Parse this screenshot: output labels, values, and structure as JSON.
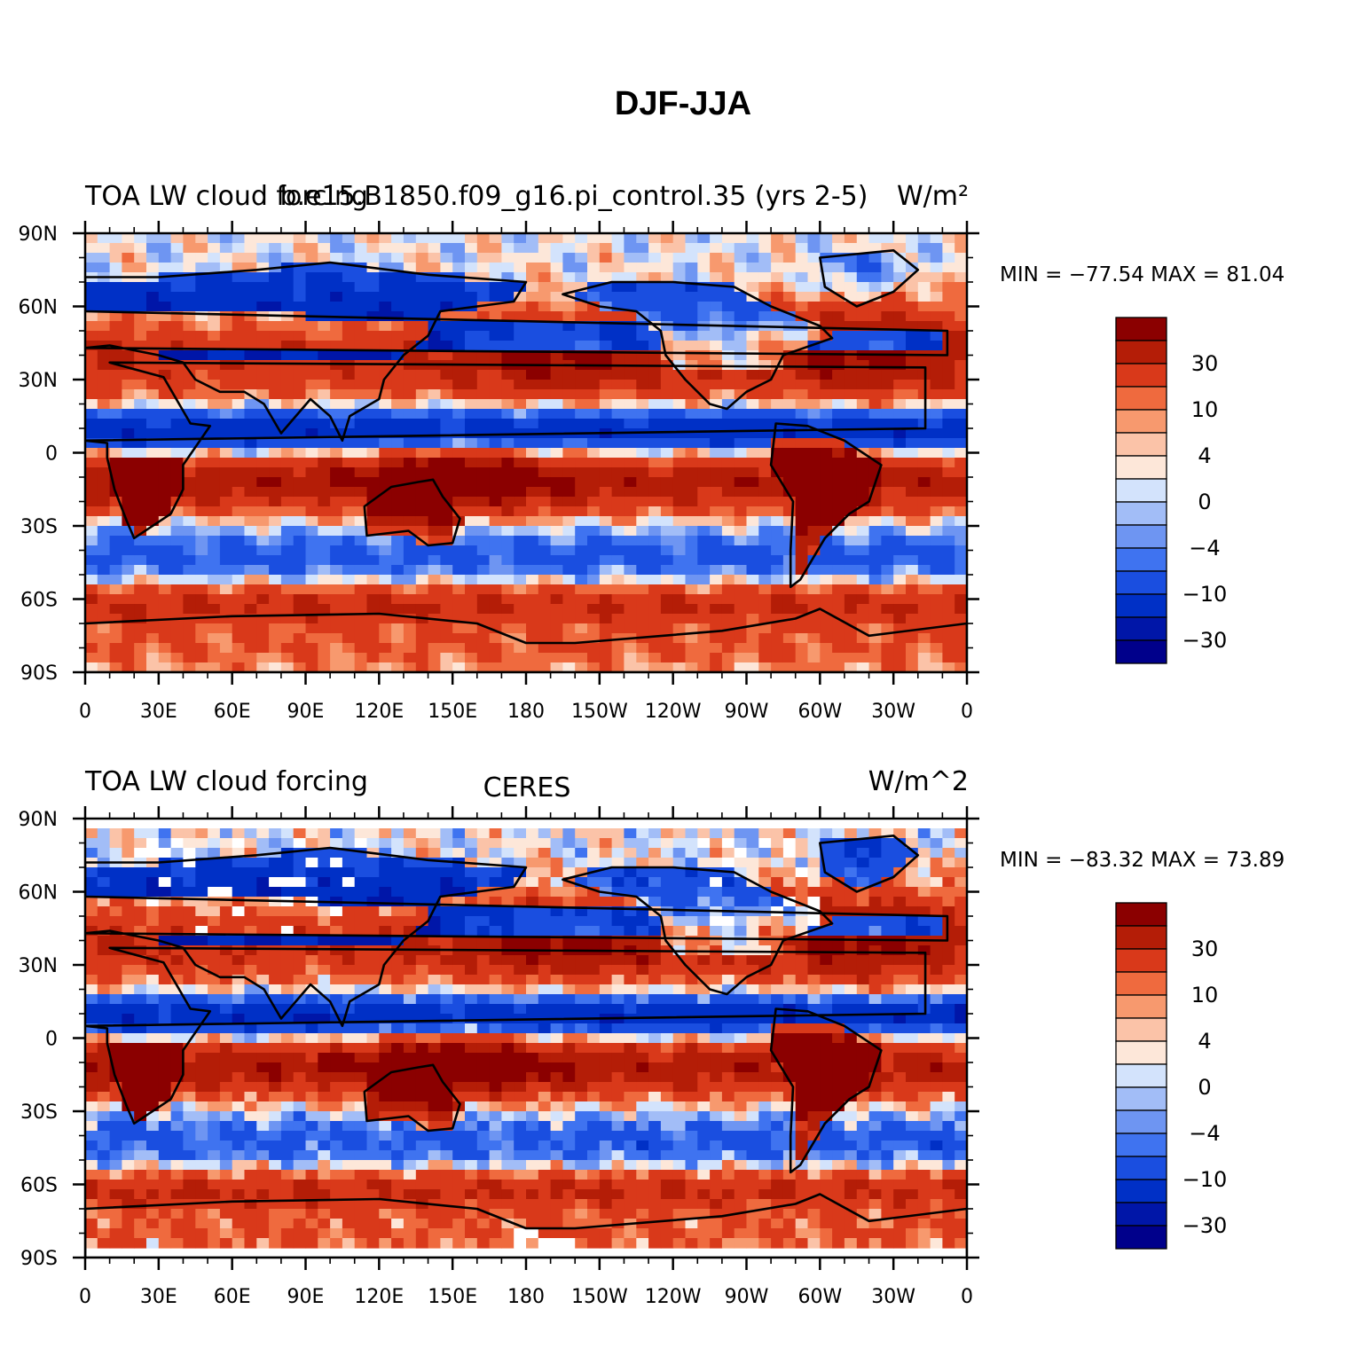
{
  "figure_title": "DJF-JJA",
  "colors": {
    "levels": [
      "#00008b",
      "#0016a8",
      "#0030c6",
      "#1a4ee0",
      "#3f73f0",
      "#6e95f2",
      "#a2bdf7",
      "#d3e3fc",
      "#fde7d9",
      "#fbc3a8",
      "#f7996e",
      "#ef6a3e",
      "#d9391a",
      "#b41d07",
      "#8b0000"
    ],
    "coast": "#000000"
  },
  "panels": [
    {
      "title_left": "TOA LW cloud forcing",
      "title_center": "b.e15.B1850.f09_g16.pi_control.35 (yrs 2-5)",
      "title_right": "W/m²",
      "min_max": "MIN = −77.54  MAX =   81.04",
      "missing_patches": false
    },
    {
      "title_left": "TOA LW cloud forcing",
      "title_center": "CERES",
      "title_right": "W/m^2",
      "min_max": "MIN = −83.32  MAX =   73.89",
      "missing_patches": true
    }
  ],
  "chart_data": [
    {
      "type": "heatmap",
      "title": "DJF-JJA",
      "subtitle": "b.e15.B1850.f09_g16.pi_control.35 (yrs 2-5)",
      "variable": "TOA LW cloud forcing",
      "units": "W/m²",
      "projection": "cylindrical equidistant",
      "xlim": [
        0,
        360
      ],
      "ylim": [
        -90,
        90
      ],
      "x_tick_labels": [
        "0",
        "30E",
        "60E",
        "90E",
        "120E",
        "150E",
        "180",
        "150W",
        "120W",
        "90W",
        "60W",
        "30W",
        "0"
      ],
      "y_tick_labels": [
        "90N",
        "60N",
        "30N",
        "0",
        "30S",
        "60S",
        "90S"
      ],
      "colorbar_labels": [
        "30",
        "10",
        "4",
        "0",
        "−4",
        "−10",
        "−30"
      ],
      "min": -77.54,
      "max": 81.04
    },
    {
      "type": "heatmap",
      "title": "DJF-JJA",
      "subtitle": "CERES",
      "variable": "TOA LW cloud forcing",
      "units": "W/m^2",
      "projection": "cylindrical equidistant",
      "xlim": [
        0,
        360
      ],
      "ylim": [
        -90,
        90
      ],
      "x_tick_labels": [
        "0",
        "30E",
        "60E",
        "90E",
        "120E",
        "150E",
        "180",
        "150W",
        "120W",
        "90W",
        "60W",
        "30W",
        "0"
      ],
      "y_tick_labels": [
        "90N",
        "60N",
        "30N",
        "0",
        "30S",
        "60S",
        "90S"
      ],
      "colorbar_labels": [
        "30",
        "10",
        "4",
        "0",
        "−4",
        "−10",
        "−30"
      ],
      "min": -83.32,
      "max": 73.89
    }
  ]
}
